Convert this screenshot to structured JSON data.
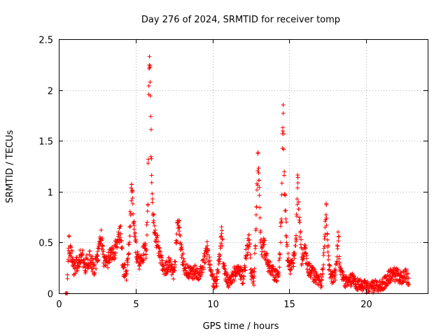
{
  "chart_data": {
    "type": "scatter",
    "title": "Day 276 of 2024, SRMTID for receiver tomp",
    "xlabel": "GPS time / hours",
    "ylabel": "SRMTID / TECUs",
    "xlim": [
      0,
      24
    ],
    "ylim": [
      0,
      2.5
    ],
    "xticks": [
      "0",
      "5",
      "10",
      "15",
      "20"
    ],
    "yticks": [
      "0",
      "0.5",
      "1",
      "1.5",
      "2",
      "2.5"
    ],
    "grid": true,
    "marker": "+",
    "series": [
      {
        "name": "SRMTID",
        "color": "#ff0000",
        "anchors": [
          [
            0.45,
            0.0
          ],
          [
            0.55,
            0.0
          ],
          [
            0.6,
            0.32
          ],
          [
            0.65,
            0.52
          ],
          [
            0.75,
            0.4
          ],
          [
            0.9,
            0.35
          ],
          [
            1.0,
            0.25
          ],
          [
            1.2,
            0.3
          ],
          [
            1.5,
            0.4
          ],
          [
            1.7,
            0.28
          ],
          [
            2.0,
            0.35
          ],
          [
            2.3,
            0.25
          ],
          [
            2.6,
            0.4
          ],
          [
            2.75,
            0.6
          ],
          [
            2.9,
            0.35
          ],
          [
            3.1,
            0.3
          ],
          [
            3.3,
            0.4
          ],
          [
            3.6,
            0.4
          ],
          [
            3.9,
            0.55
          ],
          [
            4.0,
            0.62
          ],
          [
            4.1,
            0.4
          ],
          [
            4.2,
            0.25
          ],
          [
            4.4,
            0.2
          ],
          [
            4.6,
            0.55
          ],
          [
            4.7,
            0.95
          ],
          [
            4.75,
            1.12
          ],
          [
            4.85,
            0.8
          ],
          [
            4.95,
            0.55
          ],
          [
            5.1,
            0.35
          ],
          [
            5.3,
            0.3
          ],
          [
            5.5,
            0.4
          ],
          [
            5.7,
            0.45
          ],
          [
            5.8,
            1.0
          ],
          [
            5.85,
            2.0
          ],
          [
            5.9,
            2.3
          ],
          [
            5.95,
            2.1
          ],
          [
            6.0,
            1.5
          ],
          [
            6.05,
            1.05
          ],
          [
            6.1,
            0.9
          ],
          [
            6.2,
            0.65
          ],
          [
            6.4,
            0.5
          ],
          [
            6.6,
            0.35
          ],
          [
            6.9,
            0.25
          ],
          [
            7.2,
            0.3
          ],
          [
            7.5,
            0.2
          ],
          [
            7.75,
            0.75
          ],
          [
            7.9,
            0.55
          ],
          [
            8.0,
            0.4
          ],
          [
            8.2,
            0.25
          ],
          [
            8.5,
            0.2
          ],
          [
            8.8,
            0.22
          ],
          [
            9.1,
            0.2
          ],
          [
            9.4,
            0.3
          ],
          [
            9.7,
            0.45
          ],
          [
            9.9,
            0.2
          ],
          [
            10.1,
            0.1
          ],
          [
            10.3,
            0.15
          ],
          [
            10.5,
            0.45
          ],
          [
            10.6,
            0.62
          ],
          [
            10.7,
            0.3
          ],
          [
            10.9,
            0.15
          ],
          [
            11.1,
            0.1
          ],
          [
            11.4,
            0.2
          ],
          [
            11.7,
            0.25
          ],
          [
            12.0,
            0.15
          ],
          [
            12.2,
            0.4
          ],
          [
            12.4,
            0.55
          ],
          [
            12.5,
            0.2
          ],
          [
            12.7,
            0.15
          ],
          [
            12.8,
            0.5
          ],
          [
            12.9,
            1.0
          ],
          [
            12.95,
            1.3
          ],
          [
            13.0,
            1.2
          ],
          [
            13.1,
            0.7
          ],
          [
            13.2,
            0.4
          ],
          [
            13.35,
            0.5
          ],
          [
            13.5,
            0.35
          ],
          [
            13.7,
            0.25
          ],
          [
            14.0,
            0.2
          ],
          [
            14.3,
            0.15
          ],
          [
            14.5,
            0.8
          ],
          [
            14.55,
            1.5
          ],
          [
            14.6,
            1.87
          ],
          [
            14.7,
            1.0
          ],
          [
            14.8,
            0.6
          ],
          [
            14.9,
            0.35
          ],
          [
            15.1,
            0.25
          ],
          [
            15.3,
            0.35
          ],
          [
            15.45,
            0.6
          ],
          [
            15.55,
            1.2
          ],
          [
            15.6,
            0.9
          ],
          [
            15.7,
            0.6
          ],
          [
            15.8,
            0.35
          ],
          [
            16.0,
            0.45
          ],
          [
            16.2,
            0.25
          ],
          [
            16.5,
            0.2
          ],
          [
            16.8,
            0.15
          ],
          [
            17.1,
            0.12
          ],
          [
            17.3,
            0.5
          ],
          [
            17.4,
            0.88
          ],
          [
            17.5,
            0.45
          ],
          [
            17.6,
            0.25
          ],
          [
            17.8,
            0.15
          ],
          [
            18.0,
            0.2
          ],
          [
            18.1,
            0.4
          ],
          [
            18.2,
            0.55
          ],
          [
            18.3,
            0.25
          ],
          [
            18.5,
            0.15
          ],
          [
            18.8,
            0.1
          ],
          [
            19.1,
            0.15
          ],
          [
            19.4,
            0.1
          ],
          [
            19.8,
            0.08
          ],
          [
            20.2,
            0.06
          ],
          [
            20.6,
            0.08
          ],
          [
            21.0,
            0.08
          ],
          [
            21.4,
            0.15
          ],
          [
            21.7,
            0.2
          ],
          [
            22.0,
            0.18
          ],
          [
            22.3,
            0.15
          ],
          [
            22.5,
            0.2
          ],
          [
            22.7,
            0.15
          ],
          [
            22.8,
            0.1
          ]
        ]
      }
    ]
  }
}
